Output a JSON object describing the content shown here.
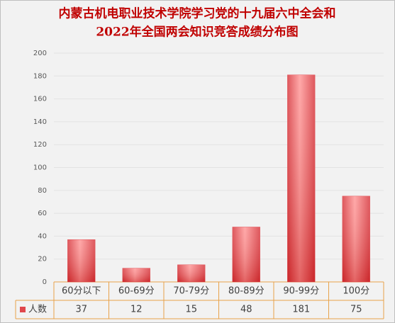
{
  "chart_data": {
    "type": "bar",
    "title": [
      "内蒙古机电职业技术学院学习党的十九届六中全会和",
      "2022年全国两会知识竞答成绩分布图"
    ],
    "categories": [
      "60分以下",
      "60-69分",
      "70-79分",
      "80-89分",
      "90-99分",
      "100分"
    ],
    "series": [
      {
        "name": "人数",
        "color": "#e0474c",
        "values": [
          37,
          12,
          15,
          48,
          181,
          75
        ]
      }
    ],
    "ylim": [
      0,
      200
    ],
    "yticks": [
      0,
      20,
      40,
      60,
      80,
      100,
      120,
      140,
      160,
      180,
      200
    ],
    "grid": true
  }
}
